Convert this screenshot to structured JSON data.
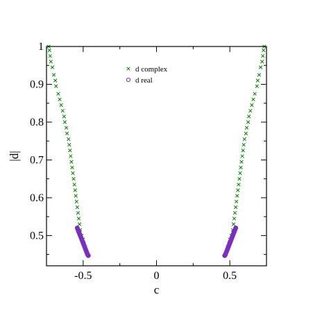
{
  "chart_data": {
    "type": "scatter",
    "xlabel": "c",
    "ylabel": "|d|",
    "xlim": [
      -0.75,
      0.75
    ],
    "ylim": [
      0.42,
      1.0
    ],
    "x_ticks": [
      -0.5,
      0,
      0.5
    ],
    "x_tick_labels": [
      "-0.5",
      "0",
      "0.5"
    ],
    "y_ticks": [
      0.5,
      0.6,
      0.7,
      0.8,
      0.9,
      1.0
    ],
    "y_tick_labels": [
      "0.5",
      "0.6",
      "0.7",
      "0.8",
      "0.9",
      "1"
    ],
    "grid": false,
    "legend_position": "top-center",
    "series": [
      {
        "name": "d complex",
        "marker": "x",
        "color": "#008000",
        "points": [
          [
            -0.735,
            1.0
          ],
          [
            -0.73,
            0.99
          ],
          [
            -0.725,
            0.975
          ],
          [
            -0.72,
            0.96
          ],
          [
            -0.71,
            0.945
          ],
          [
            -0.7,
            0.925
          ],
          [
            -0.69,
            0.91
          ],
          [
            -0.685,
            0.895
          ],
          [
            -0.67,
            0.875
          ],
          [
            -0.66,
            0.86
          ],
          [
            -0.65,
            0.845
          ],
          [
            -0.64,
            0.83
          ],
          [
            -0.63,
            0.815
          ],
          [
            -0.625,
            0.8
          ],
          [
            -0.615,
            0.785
          ],
          [
            -0.61,
            0.77
          ],
          [
            -0.6,
            0.755
          ],
          [
            -0.595,
            0.74
          ],
          [
            -0.59,
            0.725
          ],
          [
            -0.585,
            0.71
          ],
          [
            -0.58,
            0.695
          ],
          [
            -0.575,
            0.68
          ],
          [
            -0.57,
            0.665
          ],
          [
            -0.565,
            0.65
          ],
          [
            -0.56,
            0.635
          ],
          [
            -0.555,
            0.62
          ],
          [
            -0.55,
            0.605
          ],
          [
            -0.545,
            0.59
          ],
          [
            -0.54,
            0.575
          ],
          [
            -0.535,
            0.56
          ],
          [
            -0.53,
            0.545
          ],
          [
            -0.525,
            0.53
          ],
          [
            -0.52,
            0.515
          ],
          [
            -0.51,
            0.5
          ],
          [
            -0.5,
            0.49
          ],
          [
            -0.495,
            0.48
          ],
          [
            -0.485,
            0.47
          ],
          [
            -0.48,
            0.46
          ],
          [
            0.48,
            0.46
          ],
          [
            0.485,
            0.47
          ],
          [
            0.495,
            0.48
          ],
          [
            0.5,
            0.49
          ],
          [
            0.51,
            0.5
          ],
          [
            0.52,
            0.515
          ],
          [
            0.525,
            0.53
          ],
          [
            0.53,
            0.545
          ],
          [
            0.535,
            0.56
          ],
          [
            0.54,
            0.575
          ],
          [
            0.545,
            0.59
          ],
          [
            0.55,
            0.605
          ],
          [
            0.555,
            0.62
          ],
          [
            0.56,
            0.635
          ],
          [
            0.565,
            0.65
          ],
          [
            0.57,
            0.665
          ],
          [
            0.575,
            0.68
          ],
          [
            0.58,
            0.695
          ],
          [
            0.585,
            0.71
          ],
          [
            0.59,
            0.725
          ],
          [
            0.595,
            0.74
          ],
          [
            0.6,
            0.755
          ],
          [
            0.61,
            0.77
          ],
          [
            0.615,
            0.785
          ],
          [
            0.625,
            0.8
          ],
          [
            0.63,
            0.815
          ],
          [
            0.64,
            0.83
          ],
          [
            0.65,
            0.845
          ],
          [
            0.66,
            0.86
          ],
          [
            0.67,
            0.875
          ],
          [
            0.685,
            0.895
          ],
          [
            0.69,
            0.91
          ],
          [
            0.7,
            0.925
          ],
          [
            0.71,
            0.945
          ],
          [
            0.72,
            0.96
          ],
          [
            0.725,
            0.975
          ],
          [
            0.73,
            0.99
          ],
          [
            0.735,
            1.0
          ]
        ]
      },
      {
        "name": "d real",
        "marker": "o",
        "color": "#7a2fbf",
        "points": [
          [
            -0.54,
            0.52
          ],
          [
            -0.535,
            0.515
          ],
          [
            -0.53,
            0.51
          ],
          [
            -0.525,
            0.505
          ],
          [
            -0.52,
            0.5
          ],
          [
            -0.515,
            0.495
          ],
          [
            -0.51,
            0.49
          ],
          [
            -0.505,
            0.485
          ],
          [
            -0.5,
            0.48
          ],
          [
            -0.495,
            0.475
          ],
          [
            -0.49,
            0.47
          ],
          [
            -0.485,
            0.465
          ],
          [
            -0.48,
            0.46
          ],
          [
            -0.475,
            0.455
          ],
          [
            -0.47,
            0.45
          ],
          [
            -0.465,
            0.447
          ],
          [
            0.465,
            0.447
          ],
          [
            0.47,
            0.45
          ],
          [
            0.475,
            0.455
          ],
          [
            0.48,
            0.46
          ],
          [
            0.485,
            0.465
          ],
          [
            0.49,
            0.47
          ],
          [
            0.495,
            0.475
          ],
          [
            0.5,
            0.48
          ],
          [
            0.505,
            0.485
          ],
          [
            0.51,
            0.49
          ],
          [
            0.515,
            0.495
          ],
          [
            0.52,
            0.5
          ],
          [
            0.525,
            0.505
          ],
          [
            0.53,
            0.51
          ],
          [
            0.535,
            0.515
          ],
          [
            0.54,
            0.52
          ]
        ]
      }
    ]
  }
}
